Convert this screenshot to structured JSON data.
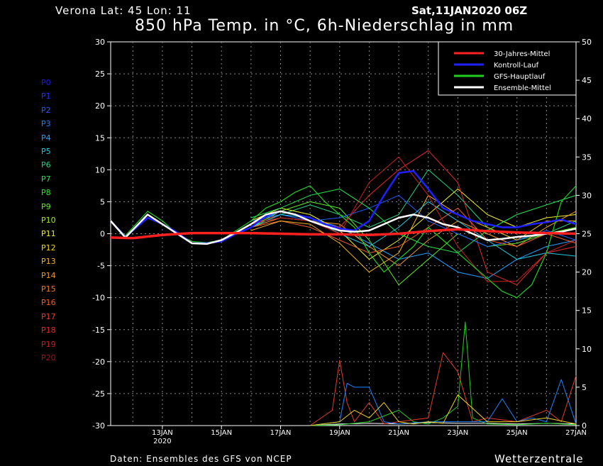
{
  "header": {
    "location": "Verona   Lat: 45 Lon: 11",
    "date": "Sat,11JAN2020 06Z",
    "title": "850 hPa Temp. in °C, 6h-Niederschlag in mm"
  },
  "footer": {
    "credit": "Daten: Ensembles des GFS von NCEP",
    "brand": "Wetterzentrale"
  },
  "members": [
    {
      "label": "P0",
      "color": "#1818ff"
    },
    {
      "label": "P1",
      "color": "#1e32ff"
    },
    {
      "label": "P2",
      "color": "#1e5aff"
    },
    {
      "label": "P3",
      "color": "#1e82ff"
    },
    {
      "label": "P4",
      "color": "#1ea0ff"
    },
    {
      "label": "P5",
      "color": "#1ec8e6"
    },
    {
      "label": "P6",
      "color": "#1ed282"
    },
    {
      "label": "P7",
      "color": "#1ee650"
    },
    {
      "label": "P8",
      "color": "#1ef01e"
    },
    {
      "label": "P9",
      "color": "#5af01e"
    },
    {
      "label": "P10",
      "color": "#a0f01e"
    },
    {
      "label": "P11",
      "color": "#f0f01e"
    },
    {
      "label": "P12",
      "color": "#f0d21e"
    },
    {
      "label": "P13",
      "color": "#f0b41e"
    },
    {
      "label": "P14",
      "color": "#f09628"
    },
    {
      "label": "P15",
      "color": "#f07828"
    },
    {
      "label": "P16",
      "color": "#f05a28"
    },
    {
      "label": "P17",
      "color": "#e63c28"
    },
    {
      "label": "P18",
      "color": "#e62828"
    },
    {
      "label": "P19",
      "color": "#c81e1e"
    },
    {
      "label": "P20",
      "color": "#a01414"
    }
  ],
  "chart_data": {
    "type": "line",
    "title": "850 hPa Temp. in °C, 6h-Niederschlag in mm",
    "x_range": [
      "11JAN 06Z",
      "27JAN 00Z"
    ],
    "x_ticks": [
      {
        "label": "13JAN",
        "sub": "2020",
        "day": 13
      },
      {
        "label": "15JAN",
        "day": 15
      },
      {
        "label": "17JAN",
        "day": 17
      },
      {
        "label": "19JAN",
        "day": 19
      },
      {
        "label": "21JAN",
        "day": 21
      },
      {
        "label": "23JAN",
        "day": 23
      },
      {
        "label": "25JAN",
        "day": 25
      },
      {
        "label": "27JAN",
        "day": 27
      }
    ],
    "y_left": {
      "min": -30,
      "max": 30,
      "ticks": [
        "30",
        "25",
        "20",
        "15",
        "10",
        "5",
        "0",
        "-5",
        "-10",
        "-15",
        "-20",
        "-25",
        "-30"
      ]
    },
    "y_right": {
      "min": 0,
      "max": 50,
      "ticks": [
        "50",
        "45",
        "40",
        "35",
        "30",
        "25",
        "20",
        "15",
        "10",
        "5",
        "0"
      ]
    },
    "grid": true,
    "legend": {
      "placement": "top-right",
      "entries": [
        {
          "name": "30-Jahres-Mittel",
          "color": "#ff2020"
        },
        {
          "name": "Kontroll-Lauf",
          "color": "#2020ff"
        },
        {
          "name": "GFS-Hauptlauf",
          "color": "#20d020"
        },
        {
          "name": "Ensemble-Mittel",
          "color": "#ffffff"
        }
      ]
    },
    "series": [
      {
        "name": "30-Jahres-Mittel",
        "color": "#ff2020",
        "axis": "left",
        "x": [
          11.25,
          12,
          13,
          14,
          15,
          16,
          17,
          18,
          19,
          20,
          21,
          22,
          23,
          24,
          25,
          26,
          27
        ],
        "values": [
          -0.6,
          -0.7,
          -0.2,
          0.1,
          0.1,
          0.1,
          0.0,
          -0.1,
          -0.1,
          -0.2,
          0.0,
          0.4,
          0.7,
          0.4,
          0.2,
          0.1,
          0.0
        ]
      },
      {
        "name": "Kontroll-Lauf",
        "color": "#2020ff",
        "axis": "left",
        "x": [
          11.25,
          11.75,
          12.5,
          13,
          13.5,
          14,
          14.5,
          15,
          15.5,
          16,
          16.5,
          17,
          17.5,
          18,
          18.5,
          19,
          19.5,
          20,
          20.5,
          21,
          21.5,
          22,
          22.5,
          23,
          23.5,
          24,
          24.5,
          25,
          25.5,
          26,
          26.5,
          27
        ],
        "values": [
          2.0,
          -0.5,
          2.5,
          1.5,
          0.2,
          -1.5,
          -1.5,
          -1.2,
          0.0,
          1.0,
          2.8,
          3.5,
          3.0,
          2.5,
          1.5,
          0.8,
          0.5,
          2.0,
          6.0,
          9.5,
          9.8,
          7.0,
          4.0,
          3.0,
          2.0,
          1.5,
          1.0,
          1.0,
          1.5,
          1.8,
          2.2,
          1.5
        ]
      },
      {
        "name": "GFS-Hauptlauf",
        "color": "#20d020",
        "axis": "left",
        "x": [
          11.25,
          11.75,
          12.5,
          13,
          13.5,
          14,
          14.5,
          15,
          15.5,
          16,
          16.5,
          17,
          17.5,
          18,
          18.5,
          19,
          19.5,
          20,
          20.5,
          21,
          21.5,
          22,
          22.5,
          23,
          23.5,
          24,
          24.5,
          25,
          25.5,
          26,
          26.5,
          27
        ],
        "values": [
          2.0,
          -0.3,
          3.5,
          2.0,
          0.0,
          -1.2,
          -1.4,
          -1.0,
          0.5,
          2.0,
          4.0,
          5.0,
          6.5,
          7.5,
          5.0,
          3.0,
          1.0,
          -3.0,
          -6.0,
          -4.0,
          -2.0,
          1.0,
          -1.0,
          -3.0,
          -5.0,
          -7.0,
          -9.0,
          -10.0,
          -8.0,
          -3.0,
          5.0,
          7.5
        ]
      },
      {
        "name": "Ensemble-Mittel",
        "color": "#ffffff",
        "axis": "left",
        "x": [
          11.25,
          11.75,
          12.5,
          13,
          13.5,
          14,
          14.5,
          15,
          15.5,
          16,
          16.5,
          17,
          17.5,
          18,
          18.5,
          19,
          19.5,
          20,
          20.5,
          21,
          21.5,
          22,
          22.5,
          23,
          23.5,
          24,
          24.5,
          25,
          25.5,
          26,
          26.5,
          27
        ],
        "values": [
          2.0,
          -0.6,
          3.0,
          1.5,
          0.0,
          -1.5,
          -1.6,
          -1.0,
          0.2,
          1.5,
          3.0,
          3.5,
          3.0,
          2.0,
          1.2,
          0.5,
          0.3,
          0.5,
          1.5,
          2.5,
          3.0,
          2.5,
          1.5,
          1.0,
          0.0,
          -1.0,
          -0.8,
          -0.5,
          -0.3,
          0.0,
          0.3,
          0.8
        ]
      },
      {
        "name": "P4",
        "color": "#1ea0ff",
        "axis": "left",
        "x": [
          16,
          17,
          18,
          19,
          20,
          21,
          22,
          23,
          24,
          25,
          26,
          27
        ],
        "values": [
          1.5,
          3.5,
          2.5,
          1.0,
          -1.5,
          -4.0,
          -3.0,
          -6.0,
          -7.0,
          -4.0,
          -2.0,
          -1.0
        ]
      },
      {
        "name": "P6",
        "color": "#1ed282",
        "axis": "left",
        "x": [
          16,
          17,
          18,
          19,
          20,
          21,
          22,
          23,
          24,
          25,
          26,
          27
        ],
        "values": [
          1.0,
          3.0,
          4.5,
          3.0,
          1.0,
          3.0,
          10.0,
          6.0,
          1.0,
          -1.0,
          0.0,
          2.0
        ]
      },
      {
        "name": "P11",
        "color": "#f0f01e",
        "axis": "left",
        "x": [
          16,
          17,
          18,
          19,
          20,
          21,
          22,
          23,
          24,
          25,
          26,
          27
        ],
        "values": [
          2.0,
          4.0,
          3.0,
          0.5,
          -4.0,
          -1.0,
          3.0,
          7.0,
          3.0,
          1.0,
          2.5,
          3.0
        ]
      },
      {
        "name": "P14",
        "color": "#f09628",
        "axis": "left",
        "x": [
          16,
          17,
          18,
          19,
          20,
          21,
          22,
          23,
          24,
          25,
          26,
          27
        ],
        "values": [
          1.0,
          2.5,
          2.0,
          1.5,
          -2.0,
          -5.0,
          -1.0,
          2.0,
          0.0,
          -2.0,
          1.0,
          3.5
        ]
      },
      {
        "name": "P18",
        "color": "#e62828",
        "axis": "left",
        "x": [
          16,
          17,
          18,
          19,
          20,
          21,
          22,
          23,
          24,
          25,
          26,
          27
        ],
        "values": [
          1.5,
          3.0,
          2.0,
          1.0,
          6.0,
          10.0,
          13.0,
          8.0,
          -6.0,
          -8.0,
          -3.0,
          -2.0
        ]
      },
      {
        "name": "P9",
        "color": "#5af01e",
        "axis": "left",
        "x": [
          16,
          17,
          18,
          19,
          20,
          21,
          22,
          23,
          24,
          25,
          26,
          27
        ],
        "values": [
          1.0,
          3.5,
          5.0,
          4.0,
          -1.0,
          -8.0,
          -4.0,
          0.0,
          -2.0,
          -1.5,
          0.0,
          1.0
        ]
      },
      {
        "name": "P2",
        "color": "#1e5aff",
        "axis": "left",
        "x": [
          16,
          17,
          18,
          19,
          20,
          21,
          22,
          23,
          24,
          25,
          26,
          27
        ],
        "values": [
          2.0,
          3.0,
          2.0,
          2.5,
          4.0,
          6.0,
          2.0,
          0.0,
          -2.0,
          -1.0,
          0.5,
          -1.0
        ]
      },
      {
        "name": "P16",
        "color": "#f05a28",
        "axis": "left",
        "x": [
          16,
          17,
          18,
          19,
          20,
          21,
          22,
          23,
          24,
          25,
          26,
          27
        ],
        "values": [
          1.0,
          2.0,
          1.0,
          -1.0,
          -3.0,
          -2.0,
          1.0,
          4.0,
          -1.0,
          -2.0,
          0.0,
          -1.5
        ]
      },
      {
        "name": "P7",
        "color": "#1ee650",
        "axis": "left",
        "x": [
          16,
          17,
          18,
          19,
          20,
          21,
          22,
          23,
          24,
          25,
          26,
          27
        ],
        "values": [
          2.5,
          4.0,
          6.0,
          7.0,
          4.0,
          0.0,
          -2.0,
          -3.0,
          0.5,
          3.0,
          4.5,
          6.0
        ]
      },
      {
        "name": "P13",
        "color": "#f0b41e",
        "axis": "left",
        "x": [
          16,
          17,
          18,
          19,
          20,
          21,
          22,
          23,
          24,
          25,
          26,
          27
        ],
        "values": [
          0.5,
          2.0,
          1.5,
          -1.5,
          -6.0,
          -3.0,
          6.0,
          3.0,
          1.0,
          -1.0,
          2.0,
          2.0
        ]
      },
      {
        "name": "P5",
        "color": "#1ec8e6",
        "axis": "left",
        "x": [
          16,
          17,
          18,
          19,
          20,
          21,
          22,
          23,
          24,
          25,
          26,
          27
        ],
        "values": [
          1.0,
          3.0,
          2.5,
          0.0,
          -2.0,
          1.0,
          5.0,
          2.0,
          -1.0,
          -4.0,
          -3.0,
          -3.5
        ]
      },
      {
        "name": "P19",
        "color": "#c81e1e",
        "axis": "left",
        "x": [
          16,
          17,
          18,
          19,
          20,
          21,
          22,
          23,
          24,
          25,
          26,
          27
        ],
        "values": [
          1.5,
          2.5,
          2.0,
          0.0,
          8.0,
          12.0,
          6.0,
          -2.0,
          -7.5,
          -7.4,
          -3.0,
          -1.0
        ]
      },
      {
        "name": "Niederschlag Ensemble-Mittel",
        "color": "#ffffff",
        "axis": "right",
        "x": [
          18,
          19,
          20,
          21,
          22,
          23,
          24,
          25,
          26,
          27
        ],
        "values": [
          0,
          0.2,
          0.3,
          0.2,
          0.4,
          0.3,
          0.3,
          0.2,
          0.3,
          0.2
        ]
      },
      {
        "name": "Niederschlag GFS-Hauptlauf",
        "color": "#20d020",
        "axis": "right",
        "x": [
          18,
          19,
          20,
          21,
          21.5,
          22,
          22.5,
          23,
          23.25,
          23.5,
          24,
          25,
          26,
          27
        ],
        "values": [
          0,
          0.1,
          0.5,
          2.0,
          0.5,
          0.2,
          1.0,
          2.5,
          13.5,
          1.0,
          0.2,
          0.1,
          0.3,
          0.1
        ]
      },
      {
        "name": "Niederschlag P17",
        "color": "#e63c28",
        "axis": "right",
        "x": [
          18,
          18.75,
          19,
          19.25,
          19.5,
          20,
          20.5,
          21,
          22,
          22.5,
          23,
          23.5,
          24,
          25,
          26,
          26.5,
          27
        ],
        "values": [
          0,
          2.0,
          8.5,
          3.0,
          0.5,
          3.0,
          0.2,
          0.5,
          1.0,
          9.5,
          7.0,
          0.5,
          1.0,
          0.5,
          2.0,
          0.5,
          6.5
        ]
      },
      {
        "name": "Niederschlag P3",
        "color": "#1e82ff",
        "axis": "right",
        "x": [
          18,
          19,
          19.25,
          19.5,
          20,
          20.5,
          21,
          22,
          23,
          24,
          24.5,
          25,
          25.5,
          26,
          26.5,
          27
        ],
        "values": [
          0,
          0.5,
          5.5,
          5.0,
          5.0,
          0.5,
          0.2,
          0.5,
          0.5,
          0.5,
          3.5,
          0.5,
          1.0,
          0.5,
          6.0,
          0.2
        ]
      },
      {
        "name": "Niederschlag P12",
        "color": "#f0d21e",
        "axis": "right",
        "x": [
          18,
          19,
          19.5,
          20,
          20.5,
          21,
          21.5,
          22,
          22.5,
          23,
          24,
          25,
          26,
          27
        ],
        "values": [
          0,
          0.5,
          2.0,
          1.0,
          3.0,
          0.5,
          0.2,
          0.5,
          0.3,
          4.0,
          0.5,
          0.5,
          1.0,
          0.2
        ]
      }
    ]
  }
}
